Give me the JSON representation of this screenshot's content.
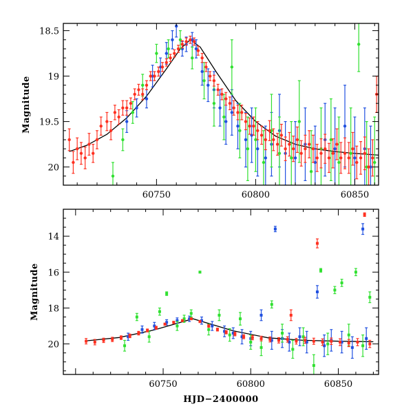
{
  "chart_data": [
    {
      "type": "scatter",
      "panel": "top",
      "title": "",
      "xlabel": "",
      "ylabel": "Magnitude",
      "xlim": [
        60703,
        60862
      ],
      "ylim": [
        20.2,
        18.42
      ],
      "y_inverted": true,
      "x_ticks": [
        60750,
        60800,
        60850
      ],
      "x_tick_labels": [
        "60750",
        "60800",
        "60850"
      ],
      "y_ticks": [
        18.5,
        19,
        19.5,
        20
      ],
      "y_tick_labels": [
        "18.5",
        "19",
        "19.5",
        "20"
      ],
      "grid": false,
      "legend": "none",
      "model_curve": {
        "color": "#000000",
        "x": [
          60706,
          60715,
          60725,
          60735,
          60745,
          60755,
          60762,
          60767,
          60772,
          60780,
          60790,
          60800,
          60810,
          60820,
          60830,
          60840,
          60850,
          60862
        ],
        "y": [
          19.83,
          19.76,
          19.64,
          19.46,
          19.22,
          18.92,
          18.7,
          18.6,
          18.68,
          18.95,
          19.27,
          19.5,
          19.66,
          19.75,
          19.8,
          19.83,
          19.85,
          19.87
        ]
      },
      "series": [
        {
          "color": "#2050e0",
          "x": [
            60735,
            60740,
            60745,
            60748,
            60752,
            60755,
            60758,
            60760,
            60763,
            60765,
            60768,
            60770,
            60773,
            60776,
            60779,
            60782,
            60785,
            60788,
            60791,
            60795,
            60798,
            60801,
            60805,
            60808,
            60812,
            60815,
            60820,
            60825,
            60830,
            60835,
            60840,
            60845,
            60850,
            60855,
            60858
          ],
          "y": [
            19.5,
            19.35,
            19.25,
            19.0,
            18.9,
            18.75,
            18.6,
            18.45,
            18.7,
            18.65,
            18.6,
            18.7,
            18.95,
            19.1,
            19.15,
            19.35,
            19.5,
            19.4,
            19.55,
            19.7,
            19.65,
            19.8,
            19.9,
            19.75,
            19.6,
            19.85,
            19.9,
            19.75,
            19.95,
            19.7,
            19.8,
            19.55,
            19.9,
            19.8,
            20.0
          ],
          "err": [
            0.12,
            0.1,
            0.1,
            0.12,
            0.1,
            0.12,
            0.1,
            0.12,
            0.08,
            0.08,
            0.08,
            0.1,
            0.15,
            0.18,
            0.2,
            0.2,
            0.25,
            0.25,
            0.25,
            0.3,
            0.3,
            0.3,
            0.35,
            0.35,
            0.4,
            0.35,
            0.4,
            0.4,
            0.4,
            0.4,
            0.45,
            0.45,
            0.45,
            0.45,
            0.45
          ]
        },
        {
          "color": "#30e030",
          "x": [
            60728,
            60733,
            60738,
            60743,
            60750,
            60756,
            60762,
            60768,
            60774,
            60779,
            60784,
            60788,
            60792,
            60796,
            60800,
            60804,
            60808,
            60812,
            60818,
            60822,
            60828,
            60833,
            60838,
            60842,
            60848,
            60852,
            60856,
            60860
          ],
          "y": [
            20.1,
            19.7,
            19.4,
            19.1,
            18.75,
            18.7,
            18.6,
            18.8,
            19.05,
            19.3,
            19.45,
            18.9,
            19.6,
            19.8,
            19.7,
            19.95,
            19.6,
            19.85,
            19.9,
            19.5,
            20.05,
            19.8,
            19.7,
            19.95,
            19.85,
            18.65,
            20.0,
            19.95
          ],
          "err": [
            0.15,
            0.12,
            0.12,
            0.12,
            0.1,
            0.1,
            0.1,
            0.12,
            0.2,
            0.25,
            0.25,
            0.3,
            0.3,
            0.35,
            0.35,
            0.35,
            0.4,
            0.4,
            0.4,
            0.45,
            0.45,
            0.45,
            0.45,
            0.5,
            0.5,
            0.3,
            0.5,
            0.5
          ]
        },
        {
          "color": "#ff3020",
          "x": [
            60706,
            60708,
            60710,
            60712,
            60714,
            60716,
            60718,
            60720,
            60722,
            60725,
            60727,
            60729,
            60731,
            60733,
            60735,
            60737,
            60739,
            60741,
            60743,
            60745,
            60747,
            60749,
            60751,
            60753,
            60755,
            60757,
            60759,
            60761,
            60763,
            60765,
            60767,
            60769,
            60771,
            60773,
            60775,
            60777,
            60779,
            60781,
            60783,
            60785,
            60787,
            60789,
            60791,
            60793,
            60795,
            60797,
            60799,
            60801,
            60803,
            60805,
            60807,
            60809,
            60811,
            60813,
            60815,
            60817,
            60819,
            60821,
            60823,
            60825,
            60827,
            60829,
            60831,
            60833,
            60835,
            60837,
            60839,
            60841,
            60843,
            60845,
            60847,
            60849,
            60851,
            60853,
            60855,
            60857,
            60859,
            60861
          ],
          "y": [
            19.7,
            19.95,
            19.8,
            19.85,
            19.9,
            19.75,
            19.85,
            19.7,
            19.55,
            19.5,
            19.6,
            19.4,
            19.45,
            19.35,
            19.35,
            19.3,
            19.2,
            19.15,
            19.2,
            19.1,
            19.0,
            19.0,
            18.95,
            18.9,
            18.85,
            18.8,
            18.75,
            18.7,
            18.65,
            18.62,
            18.6,
            18.62,
            18.72,
            18.8,
            18.9,
            19.0,
            19.05,
            19.15,
            19.2,
            19.25,
            19.3,
            19.35,
            19.4,
            19.4,
            19.5,
            19.55,
            19.55,
            19.6,
            19.65,
            19.7,
            19.6,
            19.7,
            19.75,
            19.65,
            19.8,
            19.75,
            19.8,
            19.7,
            19.85,
            19.8,
            19.75,
            19.8,
            19.9,
            19.85,
            19.8,
            19.9,
            19.85,
            19.75,
            19.9,
            19.85,
            19.9,
            19.8,
            19.95,
            19.9,
            19.85,
            20.0,
            19.9,
            19.2
          ],
          "err": [
            0.12,
            0.12,
            0.12,
            0.12,
            0.12,
            0.12,
            0.1,
            0.1,
            0.1,
            0.1,
            0.1,
            0.08,
            0.08,
            0.08,
            0.08,
            0.06,
            0.06,
            0.06,
            0.06,
            0.05,
            0.05,
            0.05,
            0.05,
            0.05,
            0.04,
            0.04,
            0.04,
            0.04,
            0.04,
            0.04,
            0.04,
            0.04,
            0.05,
            0.05,
            0.05,
            0.05,
            0.06,
            0.06,
            0.06,
            0.07,
            0.07,
            0.08,
            0.08,
            0.08,
            0.09,
            0.09,
            0.1,
            0.1,
            0.1,
            0.11,
            0.11,
            0.12,
            0.12,
            0.12,
            0.13,
            0.13,
            0.14,
            0.14,
            0.14,
            0.15,
            0.15,
            0.15,
            0.15,
            0.16,
            0.16,
            0.16,
            0.16,
            0.17,
            0.17,
            0.17,
            0.17,
            0.18,
            0.18,
            0.18,
            0.18,
            0.2,
            0.2,
            0.2
          ]
        }
      ]
    },
    {
      "type": "scatter",
      "panel": "bottom",
      "title": "",
      "xlabel": "HJD−2400000",
      "ylabel": "Magnitude",
      "xlim": [
        60693,
        60873
      ],
      "ylim": [
        21.7,
        12.5
      ],
      "y_inverted": true,
      "x_ticks": [
        60750,
        60800,
        60850
      ],
      "x_tick_labels": [
        "60750",
        "60800",
        "60850"
      ],
      "y_ticks": [
        14,
        16,
        18,
        20
      ],
      "y_tick_labels": [
        "14",
        "16",
        "18",
        "20"
      ],
      "grid": false,
      "legend": "none",
      "model_curve": {
        "color": "#000000",
        "x": [
          60706,
          60725,
          60745,
          60767,
          60790,
          60810,
          60830,
          60850,
          60870
        ],
        "y": [
          19.83,
          19.64,
          19.22,
          18.6,
          19.27,
          19.66,
          19.8,
          19.85,
          19.88
        ]
      },
      "series": [
        {
          "color": "#2050e0",
          "x": [
            60730,
            60738,
            60745,
            60752,
            60758,
            60765,
            60772,
            60778,
            60785,
            60790,
            60795,
            60800,
            60806,
            60812,
            60814,
            60818,
            60822,
            60828,
            60832,
            60838,
            60842,
            60846,
            60852,
            60858,
            60864,
            60866
          ],
          "y": [
            19.6,
            19.2,
            19.0,
            18.8,
            18.7,
            18.6,
            18.7,
            19.0,
            19.3,
            19.4,
            19.6,
            19.7,
            18.4,
            19.8,
            13.6,
            19.7,
            19.9,
            19.6,
            19.9,
            17.1,
            20.1,
            19.8,
            19.9,
            20.2,
            13.6,
            19.7
          ],
          "err": [
            0.2,
            0.2,
            0.2,
            0.15,
            0.15,
            0.15,
            0.2,
            0.25,
            0.3,
            0.3,
            0.4,
            0.4,
            0.3,
            0.5,
            0.15,
            0.5,
            0.5,
            0.5,
            0.6,
            0.35,
            0.6,
            0.6,
            0.6,
            0.6,
            0.3,
            0.6
          ]
        },
        {
          "color": "#30e030",
          "x": [
            60728,
            60735,
            60742,
            60748,
            60752,
            60758,
            60762,
            60766,
            60771,
            60776,
            60782,
            60788,
            60794,
            60800,
            60806,
            60812,
            60818,
            60824,
            60830,
            60836,
            60840,
            60844,
            60848,
            60852,
            60856,
            60860,
            60864,
            60868
          ],
          "y": [
            20.1,
            18.5,
            19.6,
            18.2,
            17.2,
            19.0,
            18.6,
            18.3,
            16.0,
            19.2,
            18.4,
            19.5,
            18.6,
            19.9,
            20.2,
            17.8,
            19.4,
            20.3,
            19.6,
            21.2,
            15.9,
            20.0,
            17.0,
            16.6,
            19.5,
            16.0,
            20.1,
            17.4
          ],
          "err": [
            0.3,
            0.2,
            0.3,
            0.2,
            0.1,
            0.25,
            0.2,
            0.2,
            0.05,
            0.3,
            0.3,
            0.35,
            0.35,
            0.4,
            0.45,
            0.2,
            0.5,
            0.5,
            0.5,
            0.6,
            0.1,
            0.6,
            0.2,
            0.2,
            0.6,
            0.2,
            0.6,
            0.3
          ]
        },
        {
          "color": "#ff3020",
          "x": [
            60706,
            60711,
            60716,
            60721,
            60726,
            60731,
            60736,
            60741,
            60746,
            60751,
            60756,
            60761,
            60766,
            60771,
            60776,
            60781,
            60786,
            60791,
            60796,
            60801,
            60806,
            60811,
            60816,
            60821,
            60823,
            60826,
            60831,
            60836,
            60838,
            60841,
            60846,
            60851,
            60856,
            60861,
            60865,
            60868
          ],
          "y": [
            19.85,
            19.9,
            19.8,
            19.75,
            19.65,
            19.55,
            19.4,
            19.25,
            19.1,
            18.9,
            18.8,
            18.7,
            18.6,
            18.75,
            19.0,
            19.2,
            19.35,
            19.45,
            19.6,
            19.65,
            19.7,
            19.75,
            19.8,
            19.75,
            18.4,
            19.85,
            19.8,
            19.85,
            14.4,
            19.9,
            19.85,
            19.9,
            19.95,
            19.9,
            12.8,
            20.0
          ],
          "err": [
            0.15,
            0.15,
            0.12,
            0.12,
            0.1,
            0.1,
            0.1,
            0.08,
            0.08,
            0.06,
            0.06,
            0.05,
            0.05,
            0.06,
            0.07,
            0.08,
            0.09,
            0.1,
            0.11,
            0.12,
            0.13,
            0.14,
            0.15,
            0.15,
            0.3,
            0.16,
            0.17,
            0.17,
            0.25,
            0.18,
            0.18,
            0.19,
            0.2,
            0.2,
            0.1,
            0.2
          ]
        }
      ]
    }
  ]
}
